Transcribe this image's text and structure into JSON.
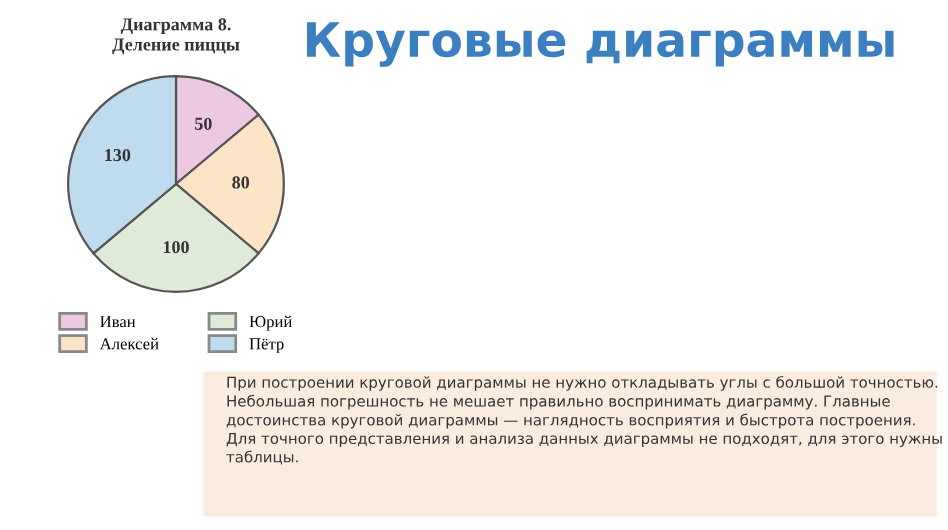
{
  "chart_data": {
    "type": "pie",
    "title": "Диаграмма 8.\nДеление пиццы",
    "categories": [
      "Иван",
      "Алексей",
      "Юрий",
      "Пётр"
    ],
    "values": [
      50,
      80,
      100,
      130
    ],
    "colors": [
      "#ecc8e2",
      "#fce4c6",
      "#dfead8",
      "#bfdcef"
    ],
    "data_labels": true,
    "legend": "bottom",
    "annotations": [
      "Круговые диаграммы",
      "При построении круговой диаграммы не нужно откладывать углы с большой точностью. Небольшая погрешность не мешает правильно воспринимать диаграмму. Главные достоинства круговой диаграммы — наглядность восприятия и быстрота построения.\nДля точного представления и анализа данных диаграммы не подходят, для этого нужны таблицы."
    ]
  }
}
